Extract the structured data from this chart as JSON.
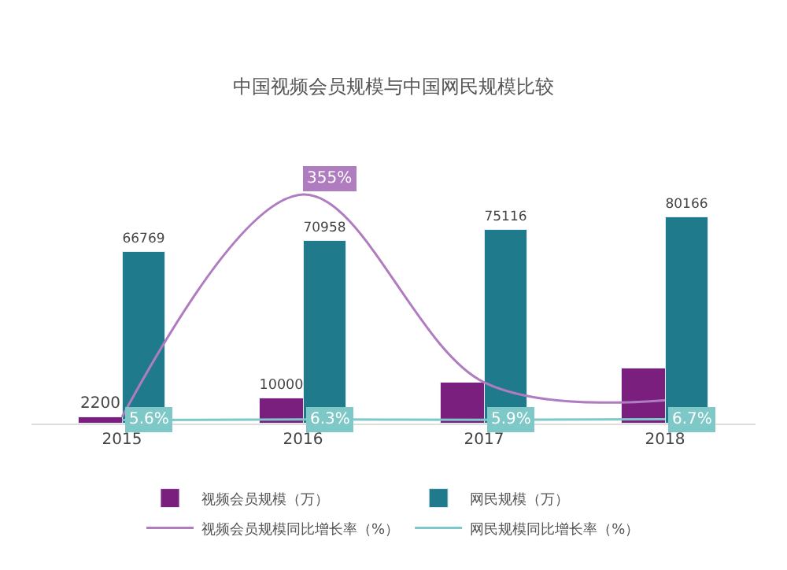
{
  "chart_data": {
    "type": "bar",
    "title": "中国视频会员规模与中国网民规模比较",
    "categories": [
      "2015",
      "2016",
      "2017",
      "2018"
    ],
    "series": [
      {
        "name": "视频会员规模（万）",
        "color": "#7b1f7e",
        "values": [
          2200,
          10000,
          15800,
          21500
        ],
        "value_labels": [
          "2200",
          "10000",
          null,
          null
        ]
      },
      {
        "name": "网民规模（万）",
        "color": "#1f7a8c",
        "values": [
          66769,
          70958,
          75116,
          80166
        ],
        "value_labels": [
          "66769",
          "70958",
          "75116",
          "80166"
        ]
      },
      {
        "name": "视频会员规模同比增长率（%）",
        "type": "line",
        "axis": "y2",
        "color": "#b07cc0",
        "values": [
          10,
          355,
          64,
          36
        ],
        "value_labels": [
          null,
          "355%",
          null,
          null
        ]
      },
      {
        "name": "网民规模同比增长率（%）",
        "type": "line",
        "axis": "y2",
        "color": "#7fc8c8",
        "values": [
          5.6,
          6.3,
          5.9,
          6.7
        ],
        "value_labels": [
          "5.6%",
          "6.3%",
          "5.9%",
          "6.7%"
        ]
      }
    ],
    "tick_labels": "x",
    "legend": "bottom",
    "marker": "none",
    "line_style": "solid"
  }
}
